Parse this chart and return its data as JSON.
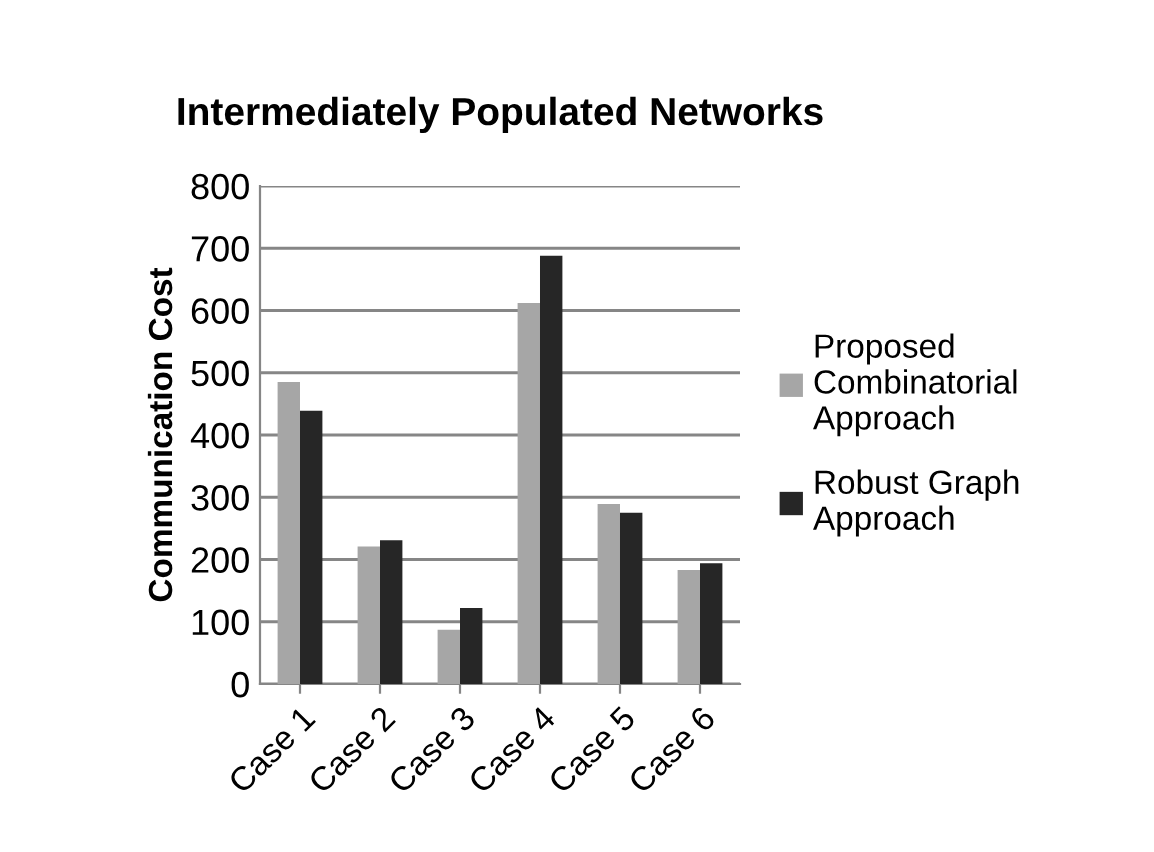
{
  "chart_data": {
    "type": "bar",
    "title": "Intermediately Populated Networks",
    "ylabel": "Communication Cost",
    "categories": [
      "Case 1",
      "Case 2",
      "Case 3",
      "Case 4",
      "Case 5",
      "Case 6"
    ],
    "series": [
      {
        "name": "Proposed Combinatorial Approach",
        "color": "#a6a6a6",
        "values": [
          485,
          221,
          87,
          612,
          289,
          183
        ]
      },
      {
        "name": "Robust Graph Approach",
        "color": "#262626",
        "values": [
          439,
          231,
          122,
          688,
          275,
          194
        ]
      }
    ],
    "ylim": [
      0,
      800
    ],
    "yticks": [
      0,
      100,
      200,
      300,
      400,
      500,
      600,
      700,
      800
    ],
    "grid": "y",
    "legend": "right"
  }
}
